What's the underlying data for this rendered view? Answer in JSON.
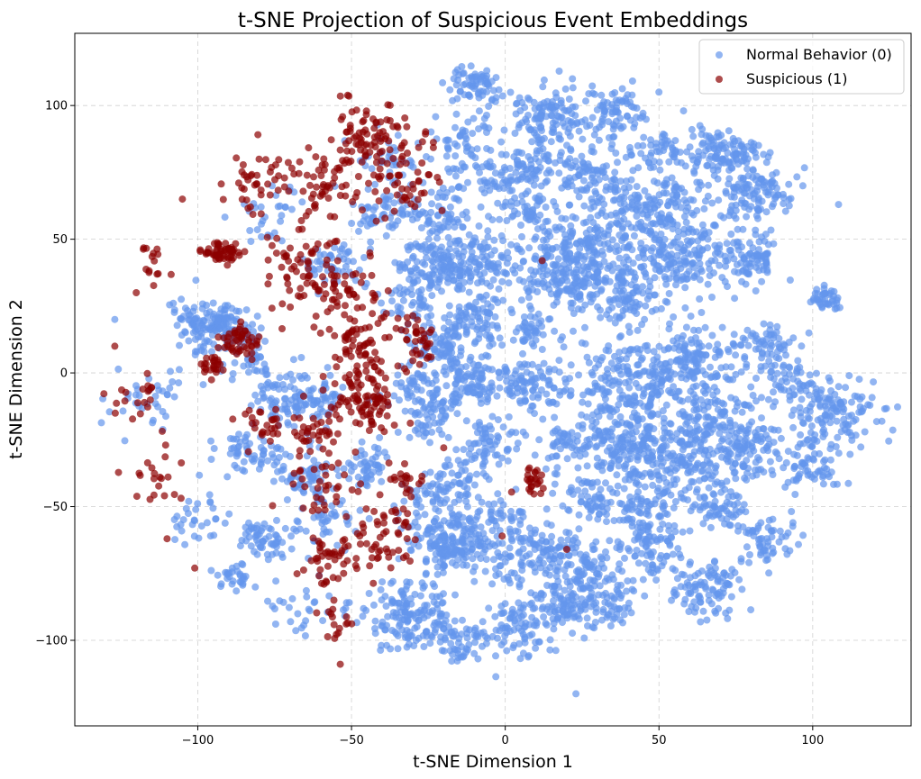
{
  "chart_data": {
    "type": "scatter",
    "title": "t-SNE Projection of Suspicious Event Embeddings",
    "xlabel": "t-SNE Dimension 1",
    "ylabel": "t-SNE Dimension 2",
    "xlim": [
      -140,
      132
    ],
    "ylim": [
      -132,
      127
    ],
    "x_ticks": [
      -100,
      -50,
      0,
      50,
      100
    ],
    "y_ticks": [
      -100,
      -50,
      0,
      50,
      100
    ],
    "x_tick_labels": [
      "−100",
      "−50",
      "0",
      "50",
      "100"
    ],
    "y_tick_labels": [
      "−100",
      "−50",
      "0",
      "50",
      "100"
    ],
    "grid": true,
    "legend_position": "top-right",
    "series": [
      {
        "name": "Normal Behavior (0)",
        "color": "#6495ED",
        "alpha": 0.7,
        "clusters": [
          {
            "x": -10,
            "y": 107,
            "sx": 4,
            "sy": 4,
            "n": 70
          },
          {
            "x": 15,
            "y": 95,
            "sx": 6,
            "sy": 6,
            "n": 130
          },
          {
            "x": 35,
            "y": 97,
            "sx": 5,
            "sy": 4,
            "n": 70
          },
          {
            "x": 50,
            "y": 83,
            "sx": 5,
            "sy": 4,
            "n": 50
          },
          {
            "x": 70,
            "y": 82,
            "sx": 6,
            "sy": 5,
            "n": 110
          },
          {
            "x": 80,
            "y": 68,
            "sx": 7,
            "sy": 6,
            "n": 120
          },
          {
            "x": 26,
            "y": 75,
            "sx": 6,
            "sy": 5,
            "n": 80
          },
          {
            "x": 7,
            "y": 75,
            "sx": 5,
            "sy": 4,
            "n": 60
          },
          {
            "x": 45,
            "y": 63,
            "sx": 9,
            "sy": 6,
            "n": 150
          },
          {
            "x": 7,
            "y": 60,
            "sx": 4,
            "sy": 4,
            "n": 50
          },
          {
            "x": 25,
            "y": 45,
            "sx": 10,
            "sy": 8,
            "n": 220
          },
          {
            "x": 58,
            "y": 45,
            "sx": 10,
            "sy": 8,
            "n": 220
          },
          {
            "x": 80,
            "y": 42,
            "sx": 4,
            "sy": 4,
            "n": 60
          },
          {
            "x": 40,
            "y": 28,
            "sx": 6,
            "sy": 5,
            "n": 80
          },
          {
            "x": 20,
            "y": 33,
            "sx": 7,
            "sy": 6,
            "n": 110
          },
          {
            "x": -10,
            "y": 40,
            "sx": 8,
            "sy": 6,
            "n": 160
          },
          {
            "x": -25,
            "y": 40,
            "sx": 5,
            "sy": 5,
            "n": 80
          },
          {
            "x": -20,
            "y": 60,
            "sx": 6,
            "sy": 5,
            "n": 70
          },
          {
            "x": -15,
            "y": 85,
            "sx": 5,
            "sy": 6,
            "n": 50
          },
          {
            "x": -20,
            "y": 10,
            "sx": 5,
            "sy": 5,
            "n": 80
          },
          {
            "x": -10,
            "y": 20,
            "sx": 6,
            "sy": 5,
            "n": 80
          },
          {
            "x": 10,
            "y": 15,
            "sx": 4,
            "sy": 3,
            "n": 40
          },
          {
            "x": 40,
            "y": -5,
            "sx": 10,
            "sy": 9,
            "n": 240
          },
          {
            "x": 62,
            "y": 5,
            "sx": 7,
            "sy": 6,
            "n": 130
          },
          {
            "x": 68,
            "y": -20,
            "sx": 9,
            "sy": 8,
            "n": 200
          },
          {
            "x": 55,
            "y": -35,
            "sx": 8,
            "sy": 7,
            "n": 150
          },
          {
            "x": 37,
            "y": -28,
            "sx": 7,
            "sy": 6,
            "n": 120
          },
          {
            "x": 108,
            "y": -15,
            "sx": 7,
            "sy": 6,
            "n": 110
          },
          {
            "x": 93,
            "y": -5,
            "sx": 5,
            "sy": 5,
            "n": 60
          },
          {
            "x": 100,
            "y": -35,
            "sx": 5,
            "sy": 5,
            "n": 70
          },
          {
            "x": 85,
            "y": 10,
            "sx": 5,
            "sy": 4,
            "n": 60
          },
          {
            "x": 80,
            "y": -30,
            "sx": 5,
            "sy": 5,
            "n": 60
          },
          {
            "x": 105,
            "y": 27,
            "sx": 3,
            "sy": 2,
            "n": 40
          },
          {
            "x": -10,
            "y": -3,
            "sx": 6,
            "sy": 5,
            "n": 110
          },
          {
            "x": 10,
            "y": -5,
            "sx": 5,
            "sy": 5,
            "n": 80
          },
          {
            "x": -25,
            "y": -15,
            "sx": 5,
            "sy": 5,
            "n": 70
          },
          {
            "x": -5,
            "y": -27,
            "sx": 5,
            "sy": 4,
            "n": 60
          },
          {
            "x": 20,
            "y": -28,
            "sx": 5,
            "sy": 5,
            "n": 50
          },
          {
            "x": -15,
            "y": -40,
            "sx": 5,
            "sy": 5,
            "n": 50
          },
          {
            "x": -18,
            "y": -62,
            "sx": 7,
            "sy": 6,
            "n": 200
          },
          {
            "x": 30,
            "y": -48,
            "sx": 6,
            "sy": 4,
            "n": 70
          },
          {
            "x": 45,
            "y": -55,
            "sx": 5,
            "sy": 5,
            "n": 60
          },
          {
            "x": 70,
            "y": -50,
            "sx": 5,
            "sy": 4,
            "n": 60
          },
          {
            "x": 85,
            "y": -63,
            "sx": 5,
            "sy": 4,
            "n": 60
          },
          {
            "x": 65,
            "y": -80,
            "sx": 6,
            "sy": 6,
            "n": 100
          },
          {
            "x": 48,
            "y": -68,
            "sx": 5,
            "sy": 5,
            "n": 60
          },
          {
            "x": 10,
            "y": -68,
            "sx": 9,
            "sy": 6,
            "n": 140
          },
          {
            "x": 30,
            "y": -72,
            "sx": 5,
            "sy": 5,
            "n": 60
          },
          {
            "x": 20,
            "y": -85,
            "sx": 7,
            "sy": 6,
            "n": 110
          },
          {
            "x": 35,
            "y": -88,
            "sx": 4,
            "sy": 4,
            "n": 40
          },
          {
            "x": 5,
            "y": -95,
            "sx": 7,
            "sy": 6,
            "n": 90
          },
          {
            "x": -30,
            "y": -90,
            "sx": 8,
            "sy": 7,
            "n": 150
          },
          {
            "x": -15,
            "y": -100,
            "sx": 6,
            "sy": 5,
            "n": 60
          },
          {
            "x": -98,
            "y": 18,
            "sx": 5,
            "sy": 5,
            "n": 110
          },
          {
            "x": -87,
            "y": 15,
            "sx": 5,
            "sy": 5,
            "n": 60
          },
          {
            "x": -80,
            "y": 0,
            "sx": 5,
            "sy": 5,
            "n": 40
          },
          {
            "x": -70,
            "y": -10,
            "sx": 6,
            "sy": 5,
            "n": 60
          },
          {
            "x": -55,
            "y": 40,
            "sx": 5,
            "sy": 4,
            "n": 50
          },
          {
            "x": -40,
            "y": 60,
            "sx": 6,
            "sy": 5,
            "n": 50
          },
          {
            "x": -60,
            "y": -10,
            "sx": 5,
            "sy": 5,
            "n": 50
          },
          {
            "x": -85,
            "y": -30,
            "sx": 7,
            "sy": 5,
            "n": 60
          },
          {
            "x": -65,
            "y": -40,
            "sx": 5,
            "sy": 5,
            "n": 60
          },
          {
            "x": -78,
            "y": -62,
            "sx": 5,
            "sy": 4,
            "n": 60
          },
          {
            "x": -88,
            "y": -76,
            "sx": 3,
            "sy": 3,
            "n": 30
          },
          {
            "x": -100,
            "y": -55,
            "sx": 5,
            "sy": 5,
            "n": 30
          },
          {
            "x": -45,
            "y": -35,
            "sx": 4,
            "sy": 4,
            "n": 50
          },
          {
            "x": -58,
            "y": -55,
            "sx": 5,
            "sy": 5,
            "n": 40
          },
          {
            "x": -65,
            "y": -90,
            "sx": 6,
            "sy": 5,
            "n": 30
          },
          {
            "x": -115,
            "y": -10,
            "sx": 7,
            "sy": 6,
            "n": 40
          },
          {
            "x": -30,
            "y": 25,
            "sx": 4,
            "sy": 4,
            "n": 40
          },
          {
            "x": -40,
            "y": 80,
            "sx": 6,
            "sy": 6,
            "n": 40
          },
          {
            "x": -75,
            "y": 60,
            "sx": 6,
            "sy": 6,
            "n": 30
          },
          {
            "x": -5,
            "y": 75,
            "sx": 5,
            "sy": 5,
            "n": 40
          },
          {
            "x": -2,
            "y": -55,
            "sx": 5,
            "sy": 5,
            "n": 40
          },
          {
            "x": -25,
            "y": -45,
            "sx": 4,
            "sy": 4,
            "n": 30
          },
          {
            "x": -30,
            "y": -5,
            "sx": 4,
            "sy": 4,
            "n": 40
          }
        ],
        "singles": [
          {
            "x": -127,
            "y": 20
          },
          {
            "x": 23,
            "y": -120
          },
          {
            "x": 50,
            "y": 105
          },
          {
            "x": 58,
            "y": 98
          }
        ]
      },
      {
        "name": "Suspicious (1)",
        "color": "#8B0000",
        "alpha": 0.7,
        "clusters": [
          {
            "x": -92,
            "y": 45,
            "sx": 3,
            "sy": 2,
            "n": 60
          },
          {
            "x": -87,
            "y": 12,
            "sx": 3,
            "sy": 3,
            "n": 50
          },
          {
            "x": -95,
            "y": 2,
            "sx": 2,
            "sy": 2,
            "n": 25
          },
          {
            "x": -48,
            "y": 12,
            "sx": 5,
            "sy": 6,
            "n": 60
          },
          {
            "x": -45,
            "y": -10,
            "sx": 5,
            "sy": 6,
            "n": 90
          },
          {
            "x": -55,
            "y": 30,
            "sx": 8,
            "sy": 8,
            "n": 70
          },
          {
            "x": -45,
            "y": 90,
            "sx": 6,
            "sy": 8,
            "n": 70
          },
          {
            "x": -35,
            "y": 75,
            "sx": 7,
            "sy": 10,
            "n": 70
          },
          {
            "x": -60,
            "y": 70,
            "sx": 6,
            "sy": 7,
            "n": 50
          },
          {
            "x": -80,
            "y": 75,
            "sx": 6,
            "sy": 8,
            "n": 40
          },
          {
            "x": -30,
            "y": 10,
            "sx": 3,
            "sy": 6,
            "n": 40
          },
          {
            "x": -70,
            "y": 40,
            "sx": 7,
            "sy": 8,
            "n": 40
          },
          {
            "x": -38,
            "y": -60,
            "sx": 5,
            "sy": 6,
            "n": 50
          },
          {
            "x": -55,
            "y": -70,
            "sx": 5,
            "sy": 10,
            "n": 50
          },
          {
            "x": -32,
            "y": -40,
            "sx": 3,
            "sy": 3,
            "n": 20
          },
          {
            "x": 9,
            "y": -40,
            "sx": 2,
            "sy": 3,
            "n": 25
          },
          {
            "x": -120,
            "y": -10,
            "sx": 4,
            "sy": 5,
            "n": 20
          },
          {
            "x": -113,
            "y": -40,
            "sx": 5,
            "sy": 5,
            "n": 20
          },
          {
            "x": -60,
            "y": -40,
            "sx": 6,
            "sy": 8,
            "n": 40
          },
          {
            "x": -78,
            "y": -20,
            "sx": 5,
            "sy": 4,
            "n": 25
          },
          {
            "x": -63,
            "y": -20,
            "sx": 4,
            "sy": 4,
            "n": 30
          },
          {
            "x": -115,
            "y": 42,
            "sx": 3,
            "sy": 4,
            "n": 15
          },
          {
            "x": -55,
            "y": -95,
            "sx": 3,
            "sy": 4,
            "n": 15
          }
        ],
        "singles": [
          {
            "x": -127,
            "y": 10
          },
          {
            "x": -105,
            "y": 65
          },
          {
            "x": -120,
            "y": 30
          },
          {
            "x": -101,
            "y": -73
          },
          {
            "x": -110,
            "y": -62
          },
          {
            "x": 12,
            "y": 42
          },
          {
            "x": 20,
            "y": -66
          },
          {
            "x": -20,
            "y": -28
          },
          {
            "x": -1,
            "y": -61
          }
        ]
      }
    ]
  }
}
